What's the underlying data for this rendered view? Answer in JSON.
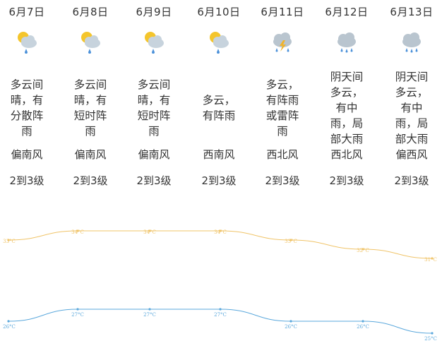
{
  "days": [
    {
      "date": "6月7日",
      "icon": "partly-sunny-rain-icon",
      "desc": "多云间晴，有分散阵雨",
      "wind": "偏南风",
      "level": "2到3级",
      "high": "33°C",
      "low": "26°C"
    },
    {
      "date": "6月8日",
      "icon": "partly-sunny-rain-icon",
      "desc": "多云间晴，有短时阵雨",
      "wind": "偏南风",
      "level": "2到3级",
      "high": "34°C",
      "low": "27°C"
    },
    {
      "date": "6月9日",
      "icon": "partly-sunny-rain-icon",
      "desc": "多云间晴，有短时阵雨",
      "wind": "偏南风",
      "level": "2到3级",
      "high": "34°C",
      "low": "27°C"
    },
    {
      "date": "6月10日",
      "icon": "partly-sunny-rain-icon",
      "desc": "多云，有阵雨",
      "wind": "西南风",
      "level": "2到3级",
      "high": "34°C",
      "low": "27°C"
    },
    {
      "date": "6月11日",
      "icon": "thunderstorm-icon",
      "desc": "多云，有阵雨或雷阵雨",
      "wind": "西北风",
      "level": "2到3级",
      "high": "33°C",
      "low": "26°C"
    },
    {
      "date": "6月12日",
      "icon": "cloud-rain-icon",
      "desc": "阴天间多云，有中雨，局部大雨",
      "wind": "西北风",
      "level": "2到3级",
      "high": "32°C",
      "low": "26°C"
    },
    {
      "date": "6月13日",
      "icon": "cloud-rain-icon",
      "desc": "阴天间多云，有中雨，局部大雨",
      "wind": "偏西风",
      "level": "2到3级",
      "high": "31°C",
      "low": "25°C"
    }
  ],
  "colors": {
    "high_line": "#f0c469",
    "low_line": "#5ba8dc",
    "text": "#333333",
    "label": "#999999"
  },
  "chart_data": {
    "type": "line",
    "categories": [
      "6月7日",
      "6月8日",
      "6月9日",
      "6月10日",
      "6月11日",
      "6月12日",
      "6月13日"
    ],
    "series": [
      {
        "values": [
          33,
          34,
          34,
          34,
          33,
          32,
          31
        ]
      },
      {
        "values": [
          26,
          27,
          27,
          27,
          26,
          26,
          25
        ]
      }
    ]
  }
}
